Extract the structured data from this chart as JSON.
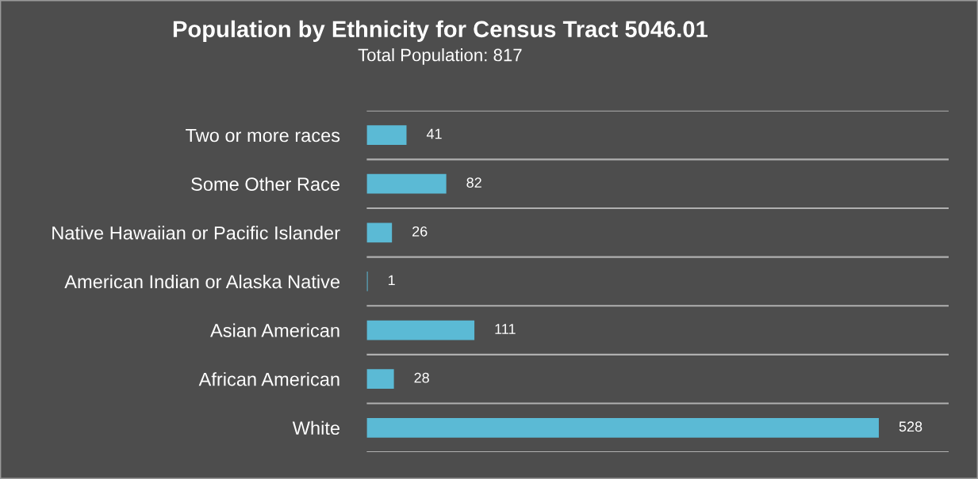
{
  "chart_data": {
    "type": "bar",
    "orientation": "horizontal",
    "title": "Population by Ethnicity for Census Tract 5046.01",
    "subtitle": "Total Population: 817",
    "categories": [
      "Two or more races",
      "Some Other Race",
      "Native Hawaiian or Pacific Islander",
      "American Indian or Alaska Native",
      "Asian American",
      "African American",
      "White"
    ],
    "values": [
      41,
      82,
      26,
      1,
      111,
      28,
      528
    ],
    "color": "#5bbad5",
    "xlim": [
      0,
      600
    ],
    "tick_labels": "y",
    "data_labels": true,
    "grid": "y",
    "legend": false
  }
}
